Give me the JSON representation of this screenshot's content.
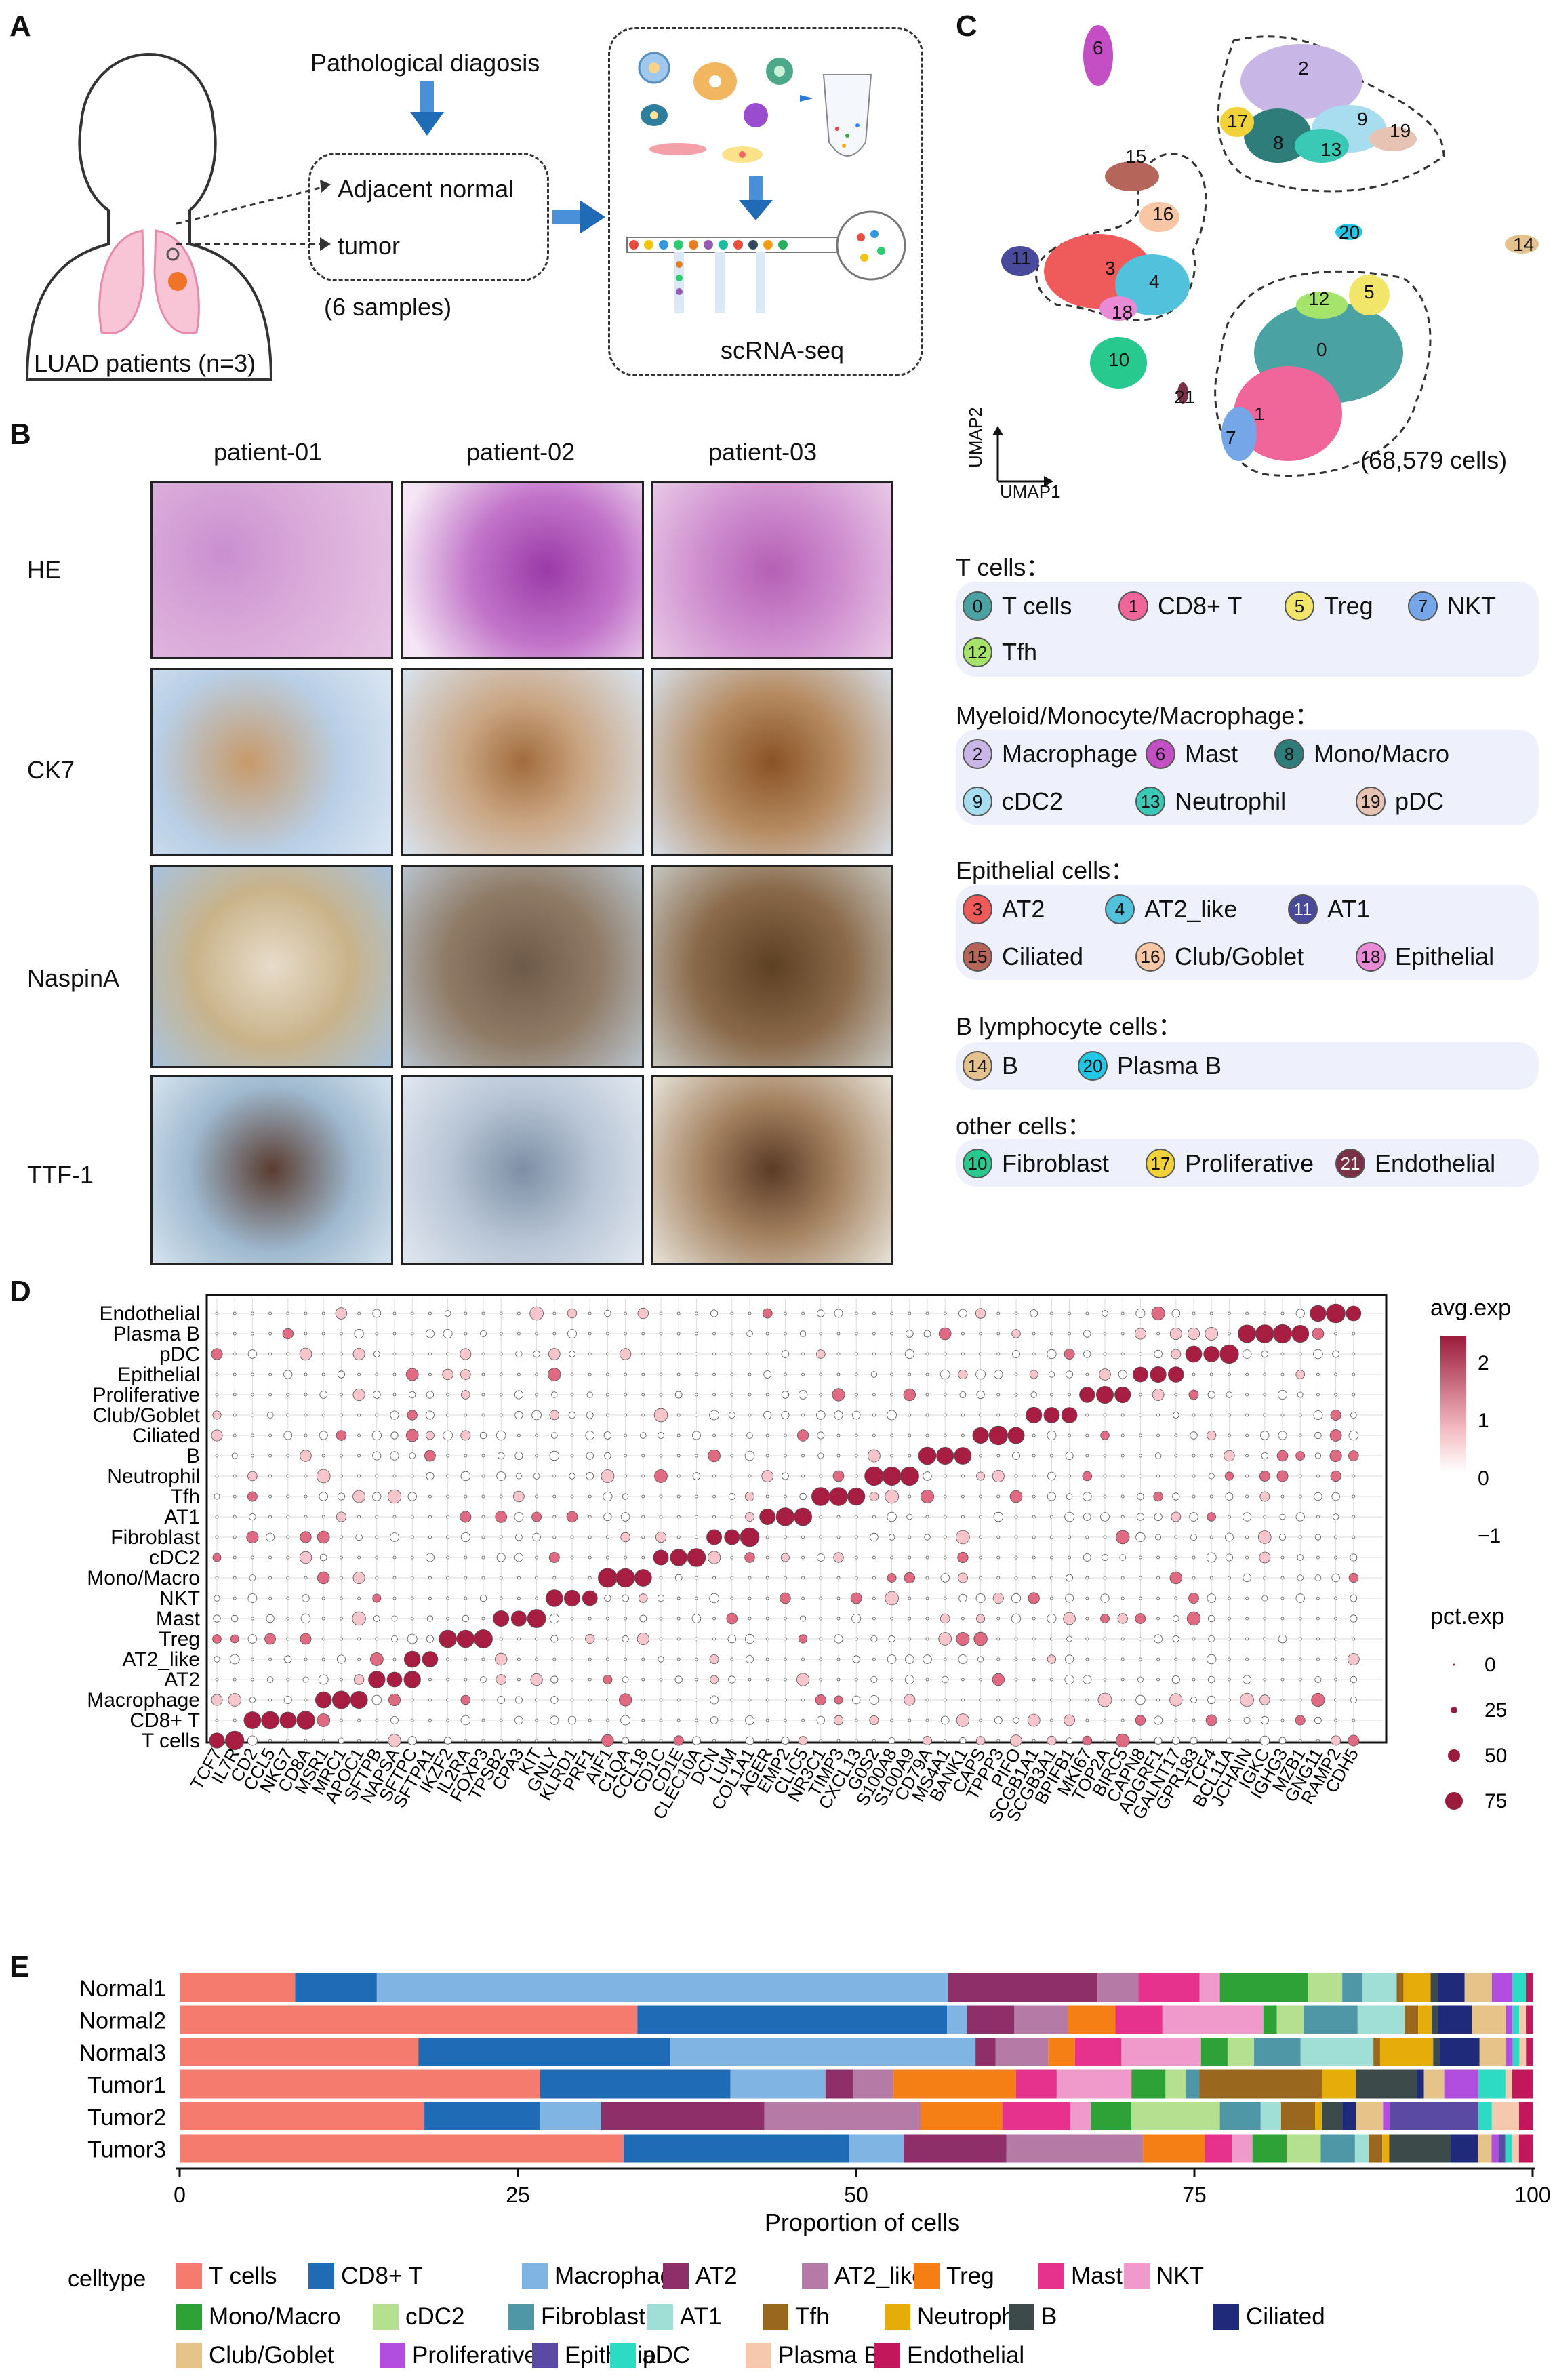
{
  "panel_labels": {
    "a": "A",
    "b": "B",
    "c": "C",
    "d": "D",
    "e": "E"
  },
  "panel_a": {
    "patients": "LUAD patients (n=3)",
    "diagnosis": "Pathological diagosis",
    "normal": "Adjacent normal",
    "tumor": "tumor",
    "samples": "(6 samples)",
    "method": "scRNA-seq"
  },
  "panel_b": {
    "columns": [
      "patient-01",
      "patient-02",
      "patient-03"
    ],
    "rows": [
      "HE",
      "CK7",
      "NaspinA",
      "TTF-1"
    ]
  },
  "panel_c": {
    "axis_y": "UMAP2",
    "axis_x": "UMAP1",
    "cell_count": "(68,579 cells)",
    "cluster_labels": [
      "0",
      "1",
      "2",
      "3",
      "4",
      "5",
      "6",
      "7",
      "8",
      "9",
      "10",
      "11",
      "12",
      "13",
      "14",
      "15",
      "16",
      "17",
      "18",
      "19",
      "20",
      "21"
    ],
    "groups": [
      {
        "title": "T cells：",
        "items": [
          {
            "n": "0",
            "label": "T cells",
            "color": "#4aa3a2"
          },
          {
            "n": "1",
            "label": "CD8+ T",
            "color": "#f0669a"
          },
          {
            "n": "5",
            "label": "Treg",
            "color": "#f1e66a"
          },
          {
            "n": "7",
            "label": "NKT",
            "color": "#74a6e8"
          },
          {
            "n": "12",
            "label": "Tfh",
            "color": "#a6e36b"
          }
        ]
      },
      {
        "title": "Myeloid/Monocyte/Macrophage：",
        "items": [
          {
            "n": "2",
            "label": "Macrophage",
            "color": "#c8b6e6"
          },
          {
            "n": "6",
            "label": "Mast",
            "color": "#c44fc4"
          },
          {
            "n": "8",
            "label": "Mono/Macro",
            "color": "#2f7d7a"
          },
          {
            "n": "9",
            "label": "cDC2",
            "color": "#a8dcef"
          },
          {
            "n": "13",
            "label": "Neutrophil",
            "color": "#39c9b4"
          },
          {
            "n": "19",
            "label": "pDC",
            "color": "#e6c3b3"
          }
        ]
      },
      {
        "title": "Epithelial cells：",
        "items": [
          {
            "n": "3",
            "label": "AT2",
            "color": "#ef5a5a"
          },
          {
            "n": "4",
            "label": "AT2_like",
            "color": "#52c1dc"
          },
          {
            "n": "11",
            "label": "AT1",
            "color": "#4a4a9c"
          },
          {
            "n": "15",
            "label": "Ciliated",
            "color": "#b5655a"
          },
          {
            "n": "16",
            "label": "Club/Goblet",
            "color": "#f6c6a5"
          },
          {
            "n": "18",
            "label": "Epithelial",
            "color": "#e88ad6"
          }
        ]
      },
      {
        "title": "B lymphocyte cells：",
        "items": [
          {
            "n": "14",
            "label": "B",
            "color": "#e3c28d"
          },
          {
            "n": "20",
            "label": "Plasma B",
            "color": "#22c7e6"
          }
        ]
      },
      {
        "title": "other cells：",
        "items": [
          {
            "n": "10",
            "label": "Fibroblast",
            "color": "#27c98f"
          },
          {
            "n": "17",
            "label": "Proliferative",
            "color": "#f2d23a"
          },
          {
            "n": "21",
            "label": "Endothelial",
            "color": "#7a3045"
          }
        ]
      }
    ]
  },
  "panel_d": {
    "legend_exp_title": "avg.exp",
    "exp_ticks": [
      "2",
      "1",
      "0",
      "−1"
    ],
    "legend_pct_title": "pct.exp",
    "pct_ticks": [
      "0",
      "25",
      "50",
      "75"
    ],
    "genes": [
      "TCF7",
      "IL7R",
      "CD2",
      "CCL5",
      "NKG7",
      "CD8A",
      "MSR1",
      "MRC1",
      "APOC1",
      "SFTPB",
      "NAPSA",
      "SFTPC",
      "SFTPA1",
      "IKZF2",
      "IL2RA",
      "FOXP3",
      "TPSB2",
      "CPA3",
      "KIT",
      "GNLY",
      "KLRD1",
      "PRF1",
      "AIF1",
      "C1QA",
      "CCL18",
      "CD1C",
      "CD1E",
      "CLEC10A",
      "DCN",
      "LUM",
      "COL1A1",
      "AGER",
      "EMP2",
      "CLIC5",
      "NR3C1",
      "TIMP3",
      "CXCL13",
      "G0S2",
      "S100A8",
      "S100A9",
      "CD79A",
      "MS4A1",
      "BANK1",
      "CAPS",
      "TPPP3",
      "PIFO",
      "SCGB1A1",
      "SCGB3A1",
      "BPIFB1",
      "MKI67",
      "TOP2A",
      "BIRC5",
      "CAPN8",
      "ADGRF1",
      "GALNT17",
      "GPR183",
      "TCF4",
      "BCL11A",
      "JCHAIN",
      "IGKC",
      "IGHG3",
      "MZB1",
      "GNG11",
      "RAMP2",
      "CDH5"
    ],
    "celltypes": [
      "Endothelial",
      "Plasma B",
      "pDC",
      "Epithelial",
      "Proliferative",
      "Club/Goblet",
      "Ciliated",
      "B",
      "Neutrophil",
      "Tfh",
      "AT1",
      "Fibroblast",
      "cDC2",
      "Mono/Macro",
      "NKT",
      "Mast",
      "Treg",
      "AT2_like",
      "AT2",
      "Macrophage",
      "CD8+ T",
      "T cells"
    ]
  },
  "chart_data": {
    "type": "bar",
    "orientation": "horizontal-stacked",
    "categories": [
      "Normal1",
      "Normal2",
      "Normal3",
      "Tumor1",
      "Tumor2",
      "Tumor3"
    ],
    "xlabel": "Proportion of cells",
    "xlim": [
      0,
      100
    ],
    "xticks": [
      "0",
      "25",
      "50",
      "75",
      "100"
    ],
    "legend_title": "celltype",
    "series": [
      {
        "name": "T cells",
        "color": "#f47b6e",
        "values": [
          8.5,
          34,
          18,
          26.5,
          18,
          32.5
        ]
      },
      {
        "name": "CD8+ T",
        "color": "#1f6bb5",
        "values": [
          6,
          23,
          19,
          14,
          8.5,
          16.5
        ]
      },
      {
        "name": "Macrophage",
        "color": "#7fb4e3",
        "values": [
          42,
          1.5,
          23,
          7,
          4.5,
          4
        ]
      },
      {
        "name": "AT2",
        "color": "#8e2f6a",
        "values": [
          11,
          3.5,
          1.5,
          2,
          12,
          7.5
        ]
      },
      {
        "name": "AT2_like",
        "color": "#b57ba6",
        "values": [
          3,
          4,
          4,
          3,
          11.5,
          10
        ]
      },
      {
        "name": "Treg",
        "color": "#f57e15",
        "values": [
          0,
          3.5,
          2,
          9,
          6,
          4.5
        ]
      },
      {
        "name": "Mast",
        "color": "#e6318d",
        "values": [
          4.5,
          3.5,
          3.5,
          3,
          5,
          2
        ]
      },
      {
        "name": "NKT",
        "color": "#ef9acb",
        "values": [
          1.5,
          7.5,
          6,
          5.5,
          1.5,
          1.5
        ]
      },
      {
        "name": "Mono/Macro",
        "color": "#2ea236",
        "values": [
          6.5,
          1,
          2,
          2.5,
          3,
          2.5
        ]
      },
      {
        "name": "cDC2",
        "color": "#b4e08f",
        "values": [
          2.5,
          2,
          2,
          1.5,
          6.5,
          2.5
        ]
      },
      {
        "name": "Fibroblast",
        "color": "#4f97a6",
        "values": [
          1.5,
          4,
          3.5,
          1,
          3,
          2.5
        ]
      },
      {
        "name": "AT1",
        "color": "#9fdfd5",
        "values": [
          2.5,
          3.5,
          5.5,
          0,
          1.5,
          1
        ]
      },
      {
        "name": "Tfh",
        "color": "#99681e",
        "values": [
          0.5,
          1,
          0.5,
          9,
          2.5,
          1
        ]
      },
      {
        "name": "Neutrophil",
        "color": "#e6ad0a",
        "values": [
          2,
          1,
          4,
          2.5,
          0.5,
          0.5
        ]
      },
      {
        "name": "B",
        "color": "#3d4a4a",
        "values": [
          0.5,
          0.5,
          0.5,
          4.5,
          1.5,
          4.5
        ]
      },
      {
        "name": "Ciliated",
        "color": "#1f2a7a",
        "values": [
          2,
          2.5,
          3,
          0.5,
          1,
          2
        ]
      },
      {
        "name": "Club/Goblet",
        "color": "#e6c489",
        "values": [
          2,
          2.5,
          2,
          1.5,
          2,
          1
        ]
      },
      {
        "name": "Proliferative",
        "color": "#b14ee0",
        "values": [
          1.5,
          0.5,
          0.5,
          2.5,
          0.5,
          0.5
        ]
      },
      {
        "name": "Epithelial",
        "color": "#5a4aa3",
        "values": [
          0,
          0,
          0,
          0,
          6.5,
          0.5
        ]
      },
      {
        "name": "pDC",
        "color": "#2ddbc4",
        "values": [
          1,
          0.5,
          0.5,
          2,
          1,
          0.5
        ]
      },
      {
        "name": "Plasma B",
        "color": "#f6c8ad",
        "values": [
          0,
          0.5,
          0.5,
          0.5,
          2,
          0.5
        ]
      },
      {
        "name": "Endothelial",
        "color": "#c2185b",
        "values": [
          0.5,
          0.5,
          0.5,
          1.5,
          1,
          1
        ]
      }
    ]
  }
}
